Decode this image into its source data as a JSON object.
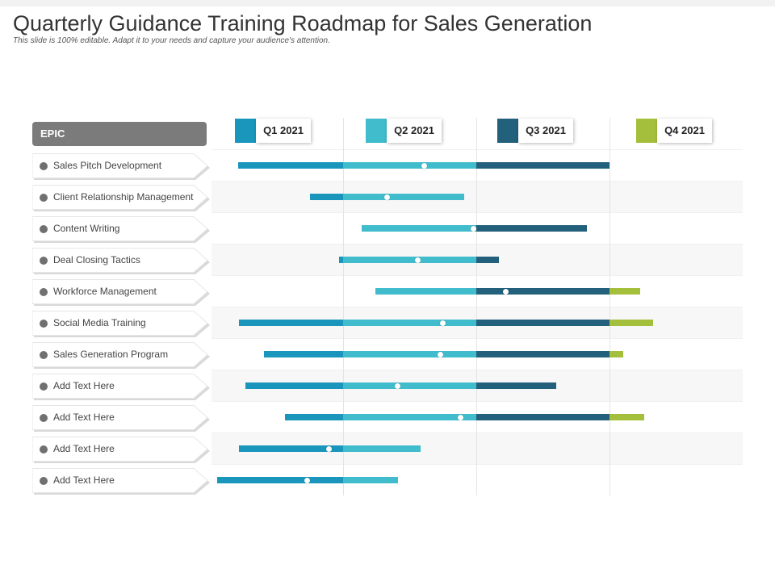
{
  "title": "Quarterly Guidance Training Roadmap for Sales Generation",
  "subtitle": "This slide is 100% editable. Adapt it to your needs and capture your audience's attention.",
  "epic_header": "EPIC",
  "colors": {
    "q1": "#1a96bd",
    "q2": "#40bccc",
    "q3": "#22607c",
    "q4": "#a4bf3b"
  },
  "quarters": [
    {
      "label": "Q1 2021",
      "color": "#1a96bd"
    },
    {
      "label": "Q2 2021",
      "color": "#40bccc"
    },
    {
      "label": "Q3 2021",
      "color": "#22607c"
    },
    {
      "label": "Q4 2021",
      "color": "#a4bf3b"
    }
  ],
  "items": [
    {
      "label": "Sales Pitch Development",
      "start": 0.2,
      "end": 3.0,
      "milestone": 1.61
    },
    {
      "label": "Client Relationship Management",
      "start": 0.75,
      "end": 1.91,
      "milestone": 1.33
    },
    {
      "label": "Content Writing",
      "start": 1.14,
      "end": 2.83,
      "milestone": 1.98
    },
    {
      "label": "Deal Closing Tactics",
      "start": 0.97,
      "end": 2.17,
      "milestone": 1.56
    },
    {
      "label": "Workforce Management",
      "start": 1.24,
      "end": 3.23,
      "milestone": 2.22
    },
    {
      "label": "Social Media Training",
      "start": 0.21,
      "end": 3.33,
      "milestone": 1.75
    },
    {
      "label": "Sales Generation Program",
      "start": 0.4,
      "end": 3.1,
      "milestone": 1.73
    },
    {
      "label": "Add Text Here",
      "start": 0.26,
      "end": 2.6,
      "milestone": 1.41
    },
    {
      "label": "Add Text Here",
      "start": 0.56,
      "end": 3.26,
      "milestone": 1.88
    },
    {
      "label": "Add Text Here",
      "start": 0.21,
      "end": 1.58,
      "milestone": 0.89
    },
    {
      "label": "Add Text Here",
      "start": 0.04,
      "end": 1.41,
      "milestone": 0.73
    }
  ]
}
